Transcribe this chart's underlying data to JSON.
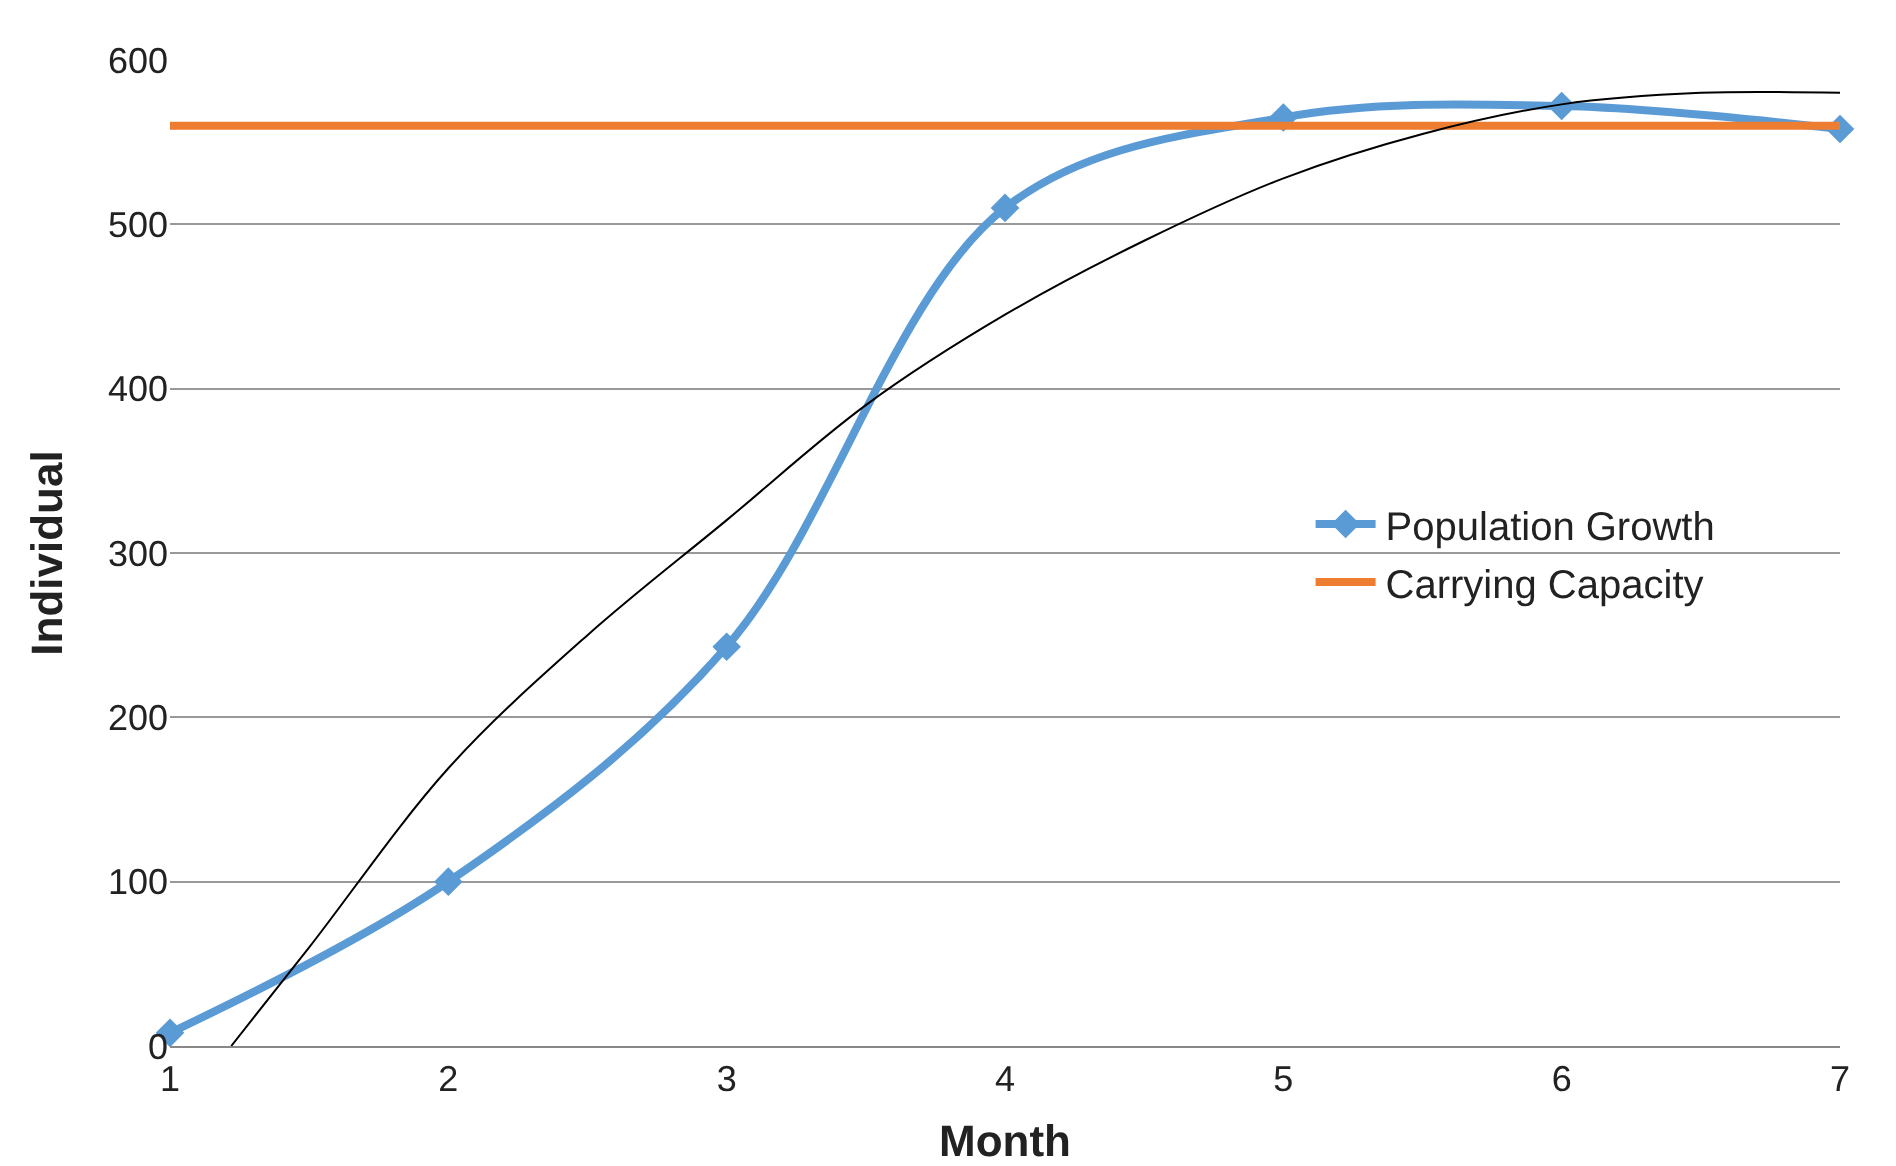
{
  "chart_data": {
    "type": "line",
    "xlabel": "Month",
    "ylabel": "Individual",
    "x": [
      1,
      2,
      3,
      4,
      5,
      6,
      7
    ],
    "series": [
      {
        "name": "Population Growth",
        "color": "#5b9bd5",
        "marker": "diamond",
        "values": [
          8,
          100,
          243,
          510,
          565,
          572,
          558
        ]
      },
      {
        "name": "Carrying Capacity",
        "color": "#ed7d31",
        "marker": "none",
        "values": [
          560,
          560,
          560,
          560,
          560,
          560,
          560
        ]
      },
      {
        "color": "#000000",
        "marker": "none",
        "x": [
          1.22,
          1.5,
          2,
          2.5,
          3,
          3.5,
          4,
          4.5,
          5,
          5.5,
          6,
          6.5,
          7
        ],
        "values": [
          0,
          60,
          169,
          250,
          320,
          390,
          445,
          490,
          528,
          555,
          573,
          580,
          580
        ]
      }
    ],
    "xlim": [
      1,
      7
    ],
    "xticks": [
      1,
      2,
      3,
      4,
      5,
      6,
      7
    ],
    "ylim": [
      0,
      600
    ],
    "yticks": [
      0,
      100,
      200,
      300,
      400,
      500,
      600
    ],
    "grid": "y",
    "legend": "right"
  }
}
